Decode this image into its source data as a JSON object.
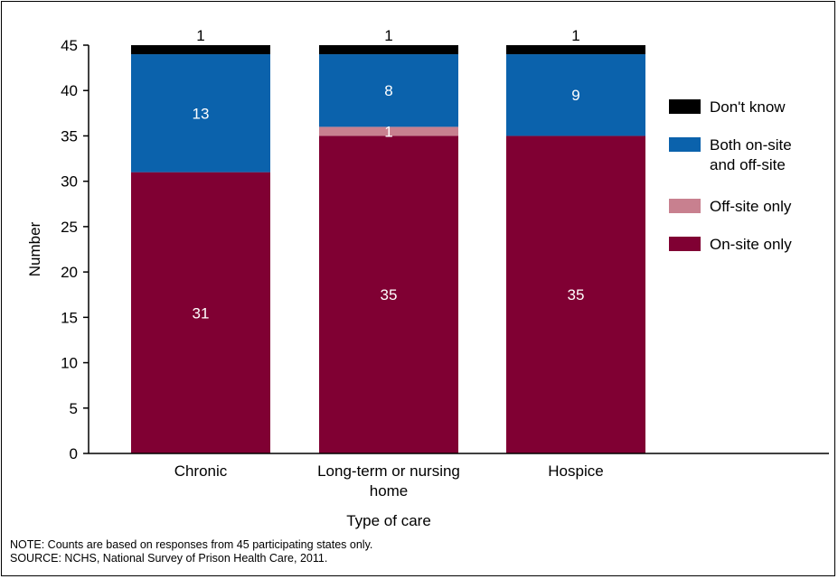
{
  "chart_data": {
    "type": "bar",
    "stacked": true,
    "categories": [
      "Chronic",
      "Long-term or nursing\nhome",
      "Hospice"
    ],
    "series": [
      {
        "name": "On-site only",
        "values": [
          31,
          35,
          35
        ],
        "color": "#800033"
      },
      {
        "name": "Off-site only",
        "values": [
          0,
          1,
          0
        ],
        "color": "#c8808f"
      },
      {
        "name": "Both on-site\nand off-site",
        "values": [
          13,
          8,
          9
        ],
        "color": "#0b62ac"
      },
      {
        "name": "Don't know",
        "values": [
          1,
          1,
          1
        ],
        "color": "#000000"
      }
    ],
    "data_labels": [
      [
        {
          "series": 0,
          "text": "31",
          "color": "#ffffff"
        },
        {
          "series": 2,
          "text": "13",
          "color": "#ffffff"
        },
        {
          "series": 3,
          "text": "1",
          "color": "#000000",
          "above": true
        }
      ],
      [
        {
          "series": 0,
          "text": "35",
          "color": "#ffffff"
        },
        {
          "series": 1,
          "text": "1",
          "color": "#ffffff"
        },
        {
          "series": 2,
          "text": "8",
          "color": "#ffffff"
        },
        {
          "series": 3,
          "text": "1",
          "color": "#000000",
          "above": true
        }
      ],
      [
        {
          "series": 0,
          "text": "35",
          "color": "#ffffff"
        },
        {
          "series": 2,
          "text": "9",
          "color": "#ffffff"
        },
        {
          "series": 3,
          "text": "1",
          "color": "#000000",
          "above": true
        }
      ]
    ],
    "xlabel": "Type of care",
    "ylabel": "Number",
    "ylim": [
      0,
      45
    ],
    "yticks": [
      0,
      5,
      10,
      15,
      20,
      25,
      30,
      35,
      40,
      45
    ],
    "grid": false,
    "legend_position": "right",
    "legend_order": [
      3,
      2,
      1,
      0
    ]
  },
  "footnotes": {
    "note": "NOTE: Counts are based on responses from 45 participating states only.",
    "source": "SOURCE: NCHS, National Survey of Prison Health Care, 2011."
  }
}
